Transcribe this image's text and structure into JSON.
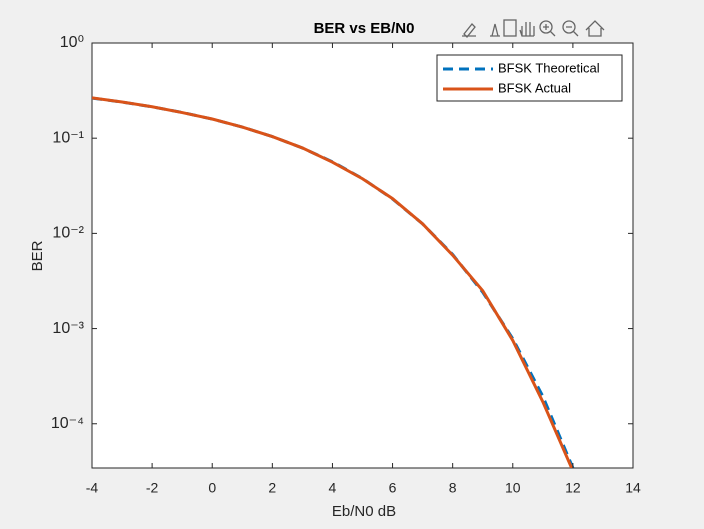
{
  "chart_data": {
    "type": "line",
    "title": "BER vs EB/N0",
    "xlabel": "Eb/N0 dB",
    "ylabel": "BER",
    "x": [
      -4,
      -3,
      -2,
      -1,
      0,
      1,
      2,
      3,
      4,
      5,
      6,
      7,
      8,
      9,
      10,
      11,
      12
    ],
    "series": [
      {
        "name": "BFSK Theoretical",
        "color": "#0072bd",
        "dashed": true,
        "values": [
          0.264,
          0.2395,
          0.2136,
          0.1865,
          0.1587,
          0.1309,
          0.104,
          0.0789,
          0.0565,
          0.0377,
          0.023,
          0.01258,
          0.006,
          0.00241,
          0.000783,
          0.000194,
          3.43e-05
        ]
      },
      {
        "name": "BFSK Actual",
        "color": "#d95319",
        "dashed": false,
        "values": [
          0.265,
          0.24,
          0.214,
          0.186,
          0.159,
          0.131,
          0.104,
          0.079,
          0.056,
          0.0375,
          0.0232,
          0.0126,
          0.0059,
          0.0025,
          0.00075,
          0.00017,
          3.2e-05
        ]
      }
    ],
    "xlim": [
      -4,
      14
    ],
    "xticks": [
      -4,
      -2,
      0,
      2,
      4,
      6,
      8,
      10,
      12,
      14
    ],
    "ylim": [
      3.43e-05,
      1
    ],
    "log_y": true,
    "yticks": [
      {
        "value": 1,
        "label": "10⁰"
      },
      {
        "value": 0.1,
        "label": "10⁻¹"
      },
      {
        "value": 0.01,
        "label": "10⁻²"
      },
      {
        "value": 0.001,
        "label": "10⁻³"
      },
      {
        "value": 0.0001,
        "label": "10⁻⁴"
      }
    ],
    "legend": "northeast"
  }
}
